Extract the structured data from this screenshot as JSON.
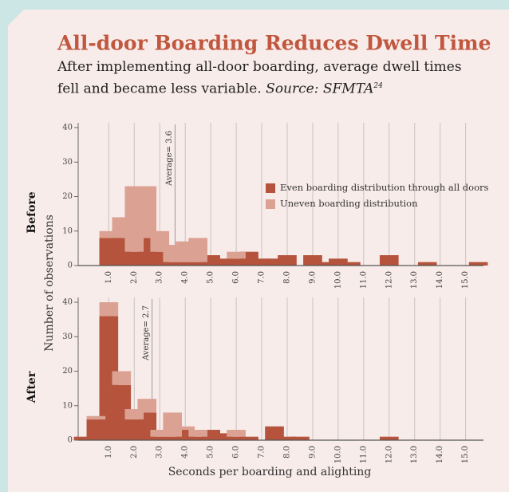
{
  "title": "All-door Boarding Reduces Dwell Time",
  "subtitle": "After implementing all-door boarding, average dwell times fell and became less variable.",
  "source": "Source: SFMTA",
  "source_note": "24",
  "ylabel": "Number of observations",
  "xlabel": "Seconds per boarding and alighting",
  "chart_data": [
    {
      "type": "bar",
      "stacked": true,
      "panel_label": "Before",
      "legend": "right",
      "x": [
        1,
        1.5,
        2,
        2.5,
        3,
        3.5,
        4,
        4.5,
        5,
        5.5,
        6,
        6.5,
        7,
        7.5,
        8,
        9,
        9.5,
        10,
        10.5,
        12,
        13.5,
        15.5
      ],
      "series": [
        {
          "name": "Even boarding distribution through all doors",
          "color": "#b5533c",
          "values": [
            8,
            8,
            4,
            8,
            4,
            1,
            1,
            1,
            3,
            2,
            2,
            4,
            2,
            2,
            3,
            3,
            1,
            2,
            1,
            3,
            1,
            1
          ]
        },
        {
          "name": "Uneven boarding distribution",
          "color": "#dba293",
          "values": [
            2,
            6,
            19,
            15,
            6,
            5,
            6,
            7,
            0,
            0,
            2,
            0,
            0,
            0,
            0,
            0,
            0,
            0,
            0,
            0,
            0,
            0
          ]
        }
      ],
      "annotation": {
        "text": "Average= 3.6",
        "x": 3.6
      },
      "xlim": [
        -0.2,
        15.7
      ],
      "xticks": [
        {
          "value": 1,
          "label": "1.0"
        },
        {
          "value": 2,
          "label": "2.0"
        },
        {
          "value": 3,
          "label": "3.0"
        },
        {
          "value": 4,
          "label": "4.0"
        },
        {
          "value": 5,
          "label": "5.0"
        },
        {
          "value": 6,
          "label": "6.0"
        },
        {
          "value": 7,
          "label": "7.0"
        },
        {
          "value": 8,
          "label": "8.0"
        },
        {
          "value": 9,
          "label": "9.0"
        },
        {
          "value": 10,
          "label": "10.0"
        },
        {
          "value": 11,
          "label": "11.0"
        },
        {
          "value": 12,
          "label": "12.0"
        },
        {
          "value": 13,
          "label": "13.0"
        },
        {
          "value": 14,
          "label": "14.0"
        },
        {
          "value": 15,
          "label": "15.0"
        }
      ],
      "ylim": [
        0,
        40
      ],
      "yticks": [
        0,
        10,
        20,
        30,
        40
      ]
    },
    {
      "type": "bar",
      "stacked": true,
      "panel_label": "After",
      "x": [
        0,
        0.5,
        1,
        1.5,
        2,
        2.5,
        3,
        3.5,
        4,
        4.5,
        5,
        5.5,
        6,
        6.5,
        7.5,
        8,
        8.5,
        12
      ],
      "series": [
        {
          "color": "#b5533c",
          "values": [
            1,
            6,
            36,
            16,
            6,
            8,
            1,
            1,
            3,
            1,
            3,
            2,
            1,
            1,
            4,
            1,
            1,
            1
          ]
        },
        {
          "color": "#dba293",
          "values": [
            0,
            1,
            4,
            4,
            3,
            4,
            2,
            7,
            1,
            2,
            0,
            0,
            2,
            0,
            0,
            0,
            0,
            0
          ]
        }
      ],
      "annotation": {
        "text": "Average= 2.7",
        "x": 2.7
      },
      "xlim": [
        -0.2,
        15.7
      ],
      "xticks": [
        {
          "value": 1,
          "label": "1.0"
        },
        {
          "value": 2,
          "label": "2.0"
        },
        {
          "value": 3,
          "label": "3.0"
        },
        {
          "value": 4,
          "label": "4.0"
        },
        {
          "value": 5,
          "label": "5.0"
        },
        {
          "value": 6,
          "label": "6.0"
        },
        {
          "value": 7,
          "label": "7.0"
        },
        {
          "value": 8,
          "label": "8.0"
        },
        {
          "value": 9,
          "label": "9.0"
        },
        {
          "value": 10,
          "label": "10.0"
        },
        {
          "value": 11,
          "label": "11.0"
        },
        {
          "value": 12,
          "label": "12.0"
        },
        {
          "value": 13,
          "label": "13.0"
        },
        {
          "value": 14,
          "label": "14.0"
        },
        {
          "value": 15,
          "label": "15.0"
        }
      ],
      "ylim": [
        0,
        40
      ],
      "yticks": [
        0,
        10,
        20,
        30,
        40
      ]
    }
  ]
}
